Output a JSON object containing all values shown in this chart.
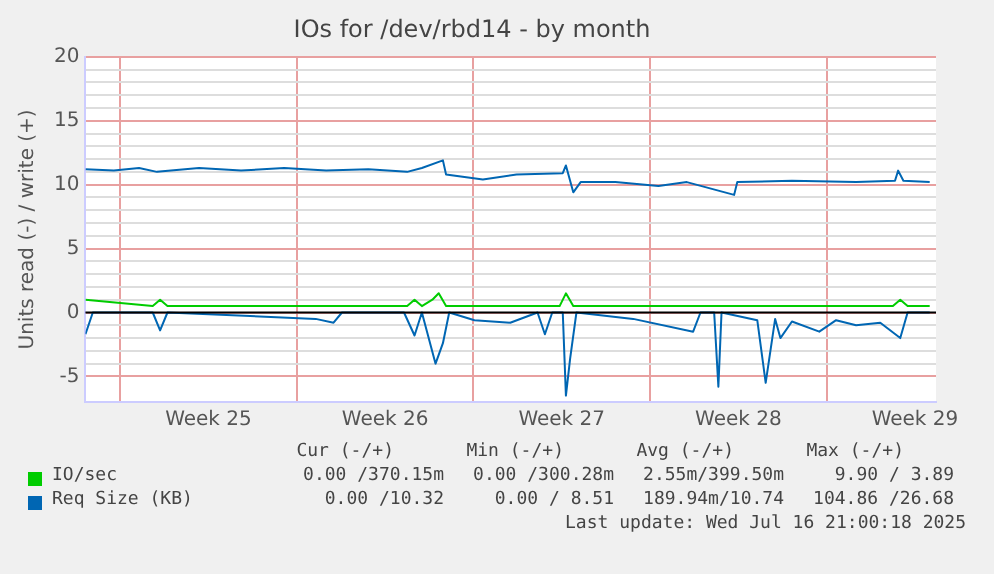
{
  "chart_data": {
    "type": "line",
    "title": "IOs for /dev/rbd14 - by month",
    "ylabel": "Units read (-) / write (+)",
    "xlim": [
      "2025-06-14T15:00",
      "2025-07-18T08:00"
    ],
    "ylim": [
      -7,
      20
    ],
    "xticks": [
      {
        "value": "2025-06-16",
        "label": null
      },
      {
        "value": "2025-06-19T12:00",
        "label": "Week 25"
      },
      {
        "value": "2025-06-23",
        "label": null
      },
      {
        "value": "2025-06-26T12:00",
        "label": "Week 26"
      },
      {
        "value": "2025-06-30",
        "label": null
      },
      {
        "value": "2025-07-03T12:00",
        "label": "Week 27"
      },
      {
        "value": "2025-07-07",
        "label": null
      },
      {
        "value": "2025-07-10T12:00",
        "label": "Week 28"
      },
      {
        "value": "2025-07-14",
        "label": null
      },
      {
        "value": "2025-07-17T12:00",
        "label": "Week 29"
      }
    ],
    "yticks": [
      -5,
      {
        "value": -4,
        "label": null
      },
      {
        "value": -3,
        "label": null
      },
      {
        "value": -2,
        "label": null
      },
      {
        "value": -1,
        "label": null
      },
      0,
      {
        "value": 1,
        "label": null
      },
      {
        "value": 2,
        "label": null
      },
      {
        "value": 3,
        "label": null
      },
      {
        "value": 4,
        "label": null
      },
      5,
      {
        "value": 6,
        "label": null
      },
      {
        "value": 7,
        "label": null
      },
      {
        "value": 8,
        "label": null
      },
      {
        "value": 9,
        "label": null
      },
      10,
      {
        "value": 11,
        "label": null
      },
      {
        "value": 12,
        "label": null
      },
      {
        "value": 13,
        "label": null
      },
      {
        "value": 14,
        "label": null
      },
      15,
      {
        "value": 16,
        "label": null
      },
      {
        "value": 17,
        "label": null
      },
      {
        "value": 18,
        "label": null
      },
      {
        "value": 19,
        "label": null
      },
      20
    ],
    "grid": true,
    "legend": "bottom",
    "marker": "none",
    "line_style": "solid",
    "ref_lines": [
      {
        "axis": "y",
        "value": 0,
        "color": "#000000"
      }
    ],
    "series": [
      {
        "name": "IO/sec",
        "color": "#00cc00",
        "x": [
          "2025-06-14T15:00",
          "2025-06-17T07:00",
          "2025-06-17T14:00",
          "2025-06-17T21:00",
          "2025-06-27T09:00",
          "2025-06-27T16:00",
          "2025-06-27T23:00",
          "2025-06-28T09:00",
          "2025-06-28T15:00",
          "2025-06-28T22:00",
          "2025-07-03T10:00",
          "2025-07-03T16:00",
          "2025-07-03T23:00",
          "2025-07-16T15:00",
          "2025-07-16T22:00",
          "2025-07-17T05:00",
          "2025-07-18T02:00"
        ],
        "values": [
          1,
          0.5,
          1,
          0.5,
          0.5,
          1,
          0.5,
          1,
          1.5,
          0.5,
          0.5,
          1.5,
          0.5,
          0.5,
          1,
          0.5,
          0.5
        ]
      },
      {
        "name": "Req Size (KB)",
        "color": "#0066b3",
        "x": [
          "2025-06-14T15:00",
          "2025-06-15T18:00",
          "2025-06-16T18:00",
          "2025-06-17T11:00",
          "2025-06-19T03:00",
          "2025-06-20T19:00",
          "2025-06-22T12:00",
          "2025-06-24T04:00",
          "2025-06-25T20:00",
          "2025-06-27T09:00",
          "2025-06-27T23:00",
          "2025-06-28T19:00",
          "2025-06-28T22:00",
          "2025-06-30T09:00",
          "2025-07-01T17:00",
          "2025-07-03T13:00",
          "2025-07-03T16:00",
          "2025-07-03T23:00",
          "2025-07-04T06:00",
          "2025-07-05T15:00",
          "2025-07-07T08:00",
          "2025-07-08T11:00",
          "2025-07-10T08:00",
          "2025-07-10T11:00",
          "2025-07-12T15:00",
          "2025-07-15T04:00",
          "2025-07-16T17:00",
          "2025-07-16T20:00",
          "2025-07-17T01:00",
          "2025-07-18T02:00"
        ],
        "values": [
          11.2,
          11.1,
          11.3,
          11.0,
          11.3,
          11.1,
          11.3,
          11.1,
          11.2,
          11.0,
          11.3,
          11.9,
          10.8,
          10.4,
          10.8,
          10.9,
          11.5,
          9.4,
          10.2,
          10.2,
          9.9,
          10.2,
          9.2,
          10.2,
          10.3,
          10.2,
          10.3,
          11.1,
          10.3,
          10.2
        ]
      },
      {
        "color": "#0066b3",
        "x": [
          "2025-06-14T15:00",
          "2025-06-14T22:00",
          "2025-06-17T07:00",
          "2025-06-17T14:00",
          "2025-06-17T21:00",
          "2025-06-23T18:00",
          "2025-06-24T11:00",
          "2025-06-24T19:00",
          "2025-06-27T06:00",
          "2025-06-27T16:00",
          "2025-06-27T23:00",
          "2025-06-28T12:00",
          "2025-06-28T19:00",
          "2025-06-29T01:00",
          "2025-06-30T01:00",
          "2025-07-01T11:00",
          "2025-07-02T13:00",
          "2025-07-02T20:00",
          "2025-07-03T03:00",
          "2025-07-03T13:00",
          "2025-07-03T16:00",
          "2025-07-03T20:00",
          "2025-07-04T02:00",
          "2025-07-06T08:00",
          "2025-07-08T17:00",
          "2025-07-09T00:00",
          "2025-07-09T13:00",
          "2025-07-09T17:00",
          "2025-07-09T20:00",
          "2025-07-11T06:00",
          "2025-07-11T14:00",
          "2025-07-11T23:00",
          "2025-07-12T04:00",
          "2025-07-12T15:00",
          "2025-07-13T17:00",
          "2025-07-14T09:00",
          "2025-07-15T04:00",
          "2025-07-16T03:00",
          "2025-07-16T22:00",
          "2025-07-17T05:00",
          "2025-07-18T02:00"
        ],
        "values": [
          -1.7,
          0,
          0,
          -1.4,
          0,
          -0.5,
          -0.8,
          0,
          0,
          -1.8,
          0,
          -4.0,
          -2.4,
          0,
          -0.6,
          -0.8,
          0,
          -1.7,
          0,
          0,
          -6.5,
          -3.6,
          0,
          -0.5,
          -1.5,
          0,
          0,
          -5.8,
          0,
          -0.6,
          -5.5,
          -0.5,
          -2.0,
          -0.7,
          -1.5,
          -0.6,
          -1.0,
          -0.8,
          -2.0,
          0,
          0
        ]
      }
    ],
    "annotations": [
      "Cur (-/+)",
      "Min (-/+)",
      "Avg (-/+)",
      "Max (-/+)",
      "0.00 /370.15m",
      "0.00 /300.28m",
      "2.55m/399.50m",
      "9.90 / 3.89",
      "0.00 /10.32",
      "0.00 / 8.51",
      "189.94m/10.74",
      "104.86 /26.68",
      "Last update: Wed Jul 16 21:00:18 2025"
    ]
  }
}
